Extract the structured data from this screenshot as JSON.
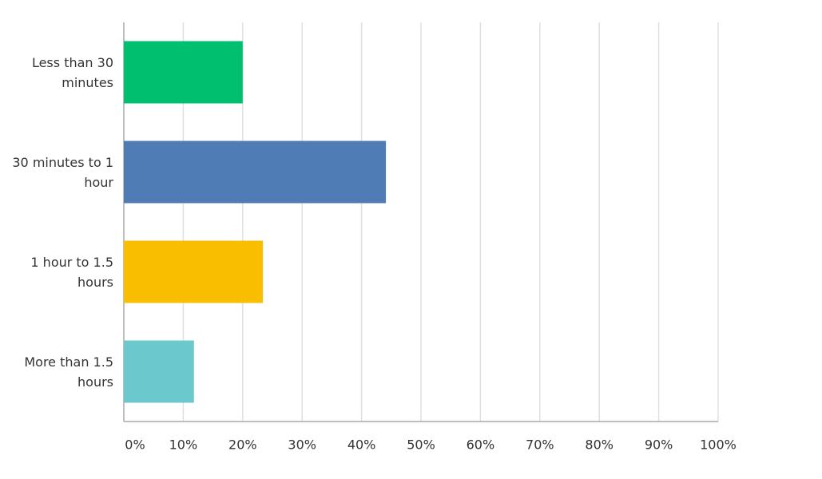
{
  "chart_data": {
    "type": "bar",
    "orientation": "horizontal",
    "categories": [
      "Less than 30 minutes",
      "30 minutes to 1 hour",
      "1 hour to 1.5 hours",
      "More than 1.5 hours"
    ],
    "values": [
      20.0,
      44.1,
      23.4,
      11.8
    ],
    "colors": [
      "#00bf6f",
      "#507cb6",
      "#f9be00",
      "#6bc8cd"
    ],
    "xlim": [
      0,
      100
    ],
    "xticks": [
      {
        "value": 0,
        "label": "0%"
      },
      {
        "value": 10,
        "label": "10%"
      },
      {
        "value": 20,
        "label": "20%"
      },
      {
        "value": 30,
        "label": "30%"
      },
      {
        "value": 40,
        "label": "40%"
      },
      {
        "value": 50,
        "label": "50%"
      },
      {
        "value": 60,
        "label": "60%"
      },
      {
        "value": 70,
        "label": "70%"
      },
      {
        "value": 80,
        "label": "80%"
      },
      {
        "value": 90,
        "label": "90%"
      },
      {
        "value": 100,
        "label": "100%"
      }
    ],
    "grid": true
  }
}
